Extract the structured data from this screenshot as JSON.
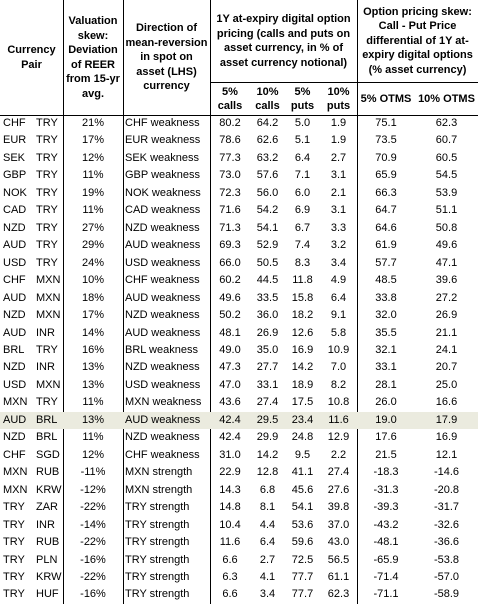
{
  "header": {
    "currency_pair": "Currency Pair",
    "valuation_skew": "Valuation skew: Deviation of REER from 15-yr avg.",
    "direction": "Direction of mean-reversion in spot on asset (LHS) currency",
    "pricing_group": "1Y at-expiry digital option pricing (calls and puts on asset currency, in % of asset currency notional)",
    "pricing_columns": [
      "5% calls",
      "10% calls",
      "5% puts",
      "10% puts"
    ],
    "skew_group": "Option pricing skew: Call - Put Price differential of 1Y at-expiry digital options (% asset currency)",
    "skew_columns": [
      "5% OTMS",
      "10% OTMS"
    ]
  },
  "rows": [
    [
      "CHF",
      "TRY",
      "21%",
      "CHF weakness",
      "80.2",
      "64.2",
      "5.0",
      "1.9",
      "75.1",
      "62.3"
    ],
    [
      "EUR",
      "TRY",
      "17%",
      "EUR weakness",
      "78.6",
      "62.6",
      "5.1",
      "1.9",
      "73.5",
      "60.7"
    ],
    [
      "SEK",
      "TRY",
      "12%",
      "SEK weakness",
      "77.3",
      "63.2",
      "6.4",
      "2.7",
      "70.9",
      "60.5"
    ],
    [
      "GBP",
      "TRY",
      "11%",
      "GBP weakness",
      "73.0",
      "57.6",
      "7.1",
      "3.1",
      "65.9",
      "54.5"
    ],
    [
      "NOK",
      "TRY",
      "19%",
      "NOK weakness",
      "72.3",
      "56.0",
      "6.0",
      "2.1",
      "66.3",
      "53.9"
    ],
    [
      "CAD",
      "TRY",
      "11%",
      "CAD weakness",
      "71.6",
      "54.2",
      "6.9",
      "3.1",
      "64.7",
      "51.1"
    ],
    [
      "NZD",
      "TRY",
      "27%",
      "NZD weakness",
      "71.3",
      "54.1",
      "6.7",
      "3.3",
      "64.6",
      "50.8"
    ],
    [
      "AUD",
      "TRY",
      "29%",
      "AUD weakness",
      "69.3",
      "52.9",
      "7.4",
      "3.2",
      "61.9",
      "49.6"
    ],
    [
      "USD",
      "TRY",
      "24%",
      "USD weakness",
      "66.0",
      "50.5",
      "8.3",
      "3.4",
      "57.7",
      "47.1"
    ],
    [
      "CHF",
      "MXN",
      "10%",
      "CHF weakness",
      "60.2",
      "44.5",
      "11.8",
      "4.9",
      "48.5",
      "39.6"
    ],
    [
      "AUD",
      "MXN",
      "18%",
      "AUD weakness",
      "49.6",
      "33.5",
      "15.8",
      "6.4",
      "33.8",
      "27.2"
    ],
    [
      "NZD",
      "MXN",
      "17%",
      "NZD weakness",
      "50.2",
      "36.0",
      "18.2",
      "9.1",
      "32.0",
      "26.9"
    ],
    [
      "AUD",
      "INR",
      "14%",
      "AUD weakness",
      "48.1",
      "26.9",
      "12.6",
      "5.8",
      "35.5",
      "21.1"
    ],
    [
      "BRL",
      "TRY",
      "16%",
      "BRL weakness",
      "49.0",
      "35.0",
      "16.9",
      "10.9",
      "32.1",
      "24.1"
    ],
    [
      "NZD",
      "INR",
      "13%",
      "NZD weakness",
      "47.3",
      "27.7",
      "14.2",
      "7.0",
      "33.1",
      "20.7"
    ],
    [
      "USD",
      "MXN",
      "13%",
      "USD weakness",
      "47.0",
      "33.1",
      "18.9",
      "8.2",
      "28.1",
      "25.0"
    ],
    [
      "MXN",
      "TRY",
      "11%",
      "MXN weakness",
      "43.6",
      "27.4",
      "17.5",
      "10.8",
      "26.0",
      "16.6"
    ],
    [
      "AUD",
      "BRL",
      "13%",
      "AUD weakness",
      "42.4",
      "29.5",
      "23.4",
      "11.6",
      "19.0",
      "17.9"
    ],
    [
      "NZD",
      "BRL",
      "11%",
      "NZD weakness",
      "42.4",
      "29.9",
      "24.8",
      "12.9",
      "17.6",
      "16.9"
    ],
    [
      "CHF",
      "SGD",
      "12%",
      "CHF weakness",
      "31.0",
      "14.2",
      "9.5",
      "2.2",
      "21.5",
      "12.1"
    ],
    [
      "MXN",
      "RUB",
      "-11%",
      "MXN strength",
      "22.9",
      "12.8",
      "41.1",
      "27.4",
      "-18.3",
      "-14.6"
    ],
    [
      "MXN",
      "KRW",
      "-12%",
      "MXN strength",
      "14.3",
      "6.8",
      "45.6",
      "27.6",
      "-31.3",
      "-20.8"
    ],
    [
      "TRY",
      "ZAR",
      "-22%",
      "TRY strength",
      "14.8",
      "8.1",
      "54.1",
      "39.8",
      "-39.3",
      "-31.7"
    ],
    [
      "TRY",
      "INR",
      "-14%",
      "TRY strength",
      "10.4",
      "4.4",
      "53.6",
      "37.0",
      "-43.2",
      "-32.6"
    ],
    [
      "TRY",
      "RUB",
      "-22%",
      "TRY strength",
      "11.6",
      "6.4",
      "59.6",
      "43.0",
      "-48.1",
      "-36.6"
    ],
    [
      "TRY",
      "PLN",
      "-16%",
      "TRY strength",
      "6.6",
      "2.7",
      "72.5",
      "56.5",
      "-65.9",
      "-53.8"
    ],
    [
      "TRY",
      "KRW",
      "-22%",
      "TRY strength",
      "6.3",
      "4.1",
      "77.7",
      "61.1",
      "-71.4",
      "-57.0"
    ],
    [
      "TRY",
      "HUF",
      "-16%",
      "TRY strength",
      "6.6",
      "3.4",
      "77.7",
      "62.3",
      "-71.1",
      "-58.9"
    ]
  ]
}
